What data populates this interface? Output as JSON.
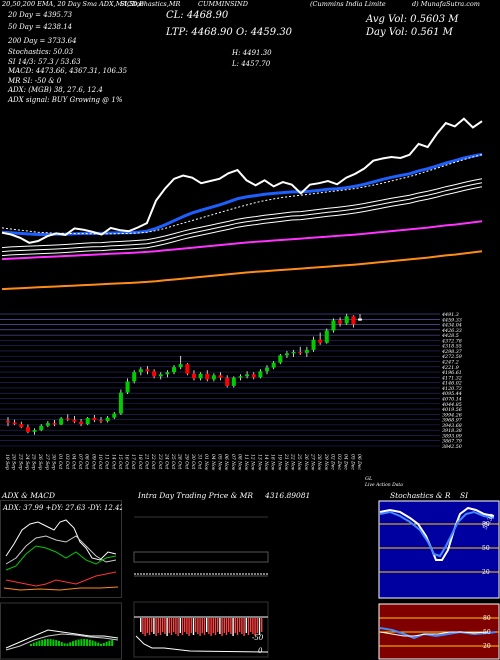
{
  "header": {
    "line1_left": "20,50,200 EMA, 20 Day Sma  ADX,MACD,B",
    "line1_mid1": "SI,Stochastics,MR",
    "line1_mid2": "CUMMINSIND",
    "line1_right1": "(Cummins India Limite",
    "line1_right2": "d) MunafaSutra.com",
    "sma20": "20  Day = 4395.73",
    "sma50": "50  Day = 4238.14",
    "sma200": "200  Day = 3733.64",
    "stochastics": "Stochastics: 50.03",
    "si": "SI 14/3:  57.3 / 53.63",
    "macd": "MACD: 4473.66, 4367.31, 106.35",
    "mr": "MR         SI: -50  & 0",
    "adx": "ADX:                 (MGB) 38, 27.6, 12.4",
    "adx_signal": "ADX  signal:                                    BUY Growing @ 1%",
    "cl": "CL: 4468.90",
    "ltp": "LTP: 4468.90 O: 4459.30",
    "hi": "H: 4491.30",
    "lo": "L: 4457.70",
    "avg_vol": "Avg Vol: 0.5603 M",
    "day_vol": "Day Vol: 0.561 M"
  },
  "bottom_labels": {
    "adx_macd": "ADX  & MACD",
    "intraday": "Intra Day Trading Price  & MR",
    "intraday_value": "4316.89081",
    "stoch_rsi": "Stochastics & R",
    "stoch_rsi_2": "SI",
    "adx_values": "ADX: 37.99  +DY: 27.63  -DY: 12.42",
    "mr_label": "-50",
    "mr_zero": "0",
    "rsi_levels": [
      "80",
      "50",
      "20"
    ],
    "rsi_value": "57.30",
    "gl_note1": "GL",
    "gl_note2": "Live Action Data"
  },
  "chart_data": {
    "type": "candlestick",
    "x_labels": [
      "19 Sep",
      "20 Sep",
      "23 Sep",
      "24 Sep",
      "25 Sep",
      "26 Sep",
      "27 Sep",
      "30 Sep",
      "01 Oct",
      "03 Oct",
      "04 Oct",
      "07 Oct",
      "08 Oct",
      "09 Oct",
      "10 Oct",
      "11 Oct",
      "14 Oct",
      "15 Oct",
      "16 Oct",
      "17 Oct",
      "18 Oct",
      "21 Oct",
      "22 Oct",
      "23 Oct",
      "24 Oct",
      "25 Oct",
      "28 Oct",
      "29 Oct",
      "30 Oct",
      "31 Oct",
      "01 Nov",
      "04 Nov",
      "05 Nov",
      "06 Nov",
      "07 Nov",
      "08 Nov",
      "11 Nov",
      "12 Nov",
      "13 Nov",
      "14 Nov",
      "18 Nov",
      "19 Nov",
      "21 Nov",
      "22 Nov",
      "25 Nov",
      "26 Nov",
      "27 Nov",
      "28 Nov",
      "29 Nov",
      "02 Dec",
      "03 Dec",
      "04 Dec",
      "05 Dec",
      "06 Dec"
    ],
    "price_ticks": [
      "4491.3",
      "4459.33",
      "4434.04",
      "4426.33",
      "4428.5",
      "4372.78",
      "4318.55",
      "4298.37",
      "4272.59",
      "4247.2",
      "4221.9",
      "4196.61",
      "4171.32",
      "4146.02",
      "4120.73",
      "4095.44",
      "4070.14",
      "4044.85",
      "4019.56",
      "3994.26",
      "3968.97",
      "3943.68",
      "3918.38",
      "3893.09",
      "3867.79",
      "3842.50"
    ],
    "candles": [
      [
        3965,
        3985,
        3940,
        3958
      ],
      [
        3958,
        3972,
        3945,
        3950
      ],
      [
        3950,
        3962,
        3930,
        3935
      ],
      [
        3935,
        3948,
        3905,
        3912
      ],
      [
        3912,
        3930,
        3898,
        3920
      ],
      [
        3920,
        3950,
        3915,
        3942
      ],
      [
        3942,
        3965,
        3935,
        3955
      ],
      [
        3955,
        3970,
        3940,
        3948
      ],
      [
        3948,
        3985,
        3945,
        3978
      ],
      [
        3978,
        3998,
        3965,
        3972
      ],
      [
        3972,
        3990,
        3955,
        3962
      ],
      [
        3962,
        3975,
        3940,
        3950
      ],
      [
        3950,
        3985,
        3945,
        3980
      ],
      [
        3980,
        3995,
        3960,
        3970
      ],
      [
        3970,
        3985,
        3955,
        3965
      ],
      [
        3965,
        3990,
        3958,
        3982
      ],
      [
        3982,
        4010,
        3975,
        4002
      ],
      [
        4002,
        4120,
        3995,
        4105
      ],
      [
        4105,
        4175,
        4098,
        4160
      ],
      [
        4160,
        4215,
        4150,
        4205
      ],
      [
        4205,
        4230,
        4190,
        4220
      ],
      [
        4220,
        4235,
        4195,
        4210
      ],
      [
        4210,
        4220,
        4175,
        4185
      ],
      [
        4185,
        4205,
        4170,
        4195
      ],
      [
        4195,
        4215,
        4180,
        4205
      ],
      [
        4205,
        4240,
        4195,
        4230
      ],
      [
        4230,
        4285,
        4220,
        4245
      ],
      [
        4245,
        4250,
        4190,
        4198
      ],
      [
        4198,
        4215,
        4165,
        4175
      ],
      [
        4175,
        4205,
        4165,
        4198
      ],
      [
        4198,
        4215,
        4160,
        4170
      ],
      [
        4170,
        4200,
        4160,
        4190
      ],
      [
        4190,
        4205,
        4165,
        4178
      ],
      [
        4178,
        4190,
        4130,
        4138
      ],
      [
        4138,
        4185,
        4130,
        4178
      ],
      [
        4178,
        4195,
        4165,
        4185
      ],
      [
        4185,
        4210,
        4175,
        4195
      ],
      [
        4195,
        4205,
        4170,
        4180
      ],
      [
        4180,
        4220,
        4175,
        4210
      ],
      [
        4210,
        4240,
        4195,
        4228
      ],
      [
        4228,
        4260,
        4220,
        4252
      ],
      [
        4252,
        4295,
        4245,
        4288
      ],
      [
        4288,
        4310,
        4275,
        4298
      ],
      [
        4298,
        4315,
        4280,
        4305
      ],
      [
        4305,
        4330,
        4290,
        4300
      ],
      [
        4300,
        4330,
        4280,
        4315
      ],
      [
        4315,
        4380,
        4305,
        4365
      ],
      [
        4365,
        4400,
        4340,
        4350
      ],
      [
        4350,
        4420,
        4345,
        4410
      ],
      [
        4410,
        4470,
        4400,
        4460
      ],
      [
        4460,
        4475,
        4430,
        4445
      ],
      [
        4445,
        4492,
        4438,
        4480
      ],
      [
        4480,
        4485,
        4425,
        4440
      ],
      [
        4459.3,
        4491.3,
        4457.7,
        4468.9
      ]
    ],
    "ema_20": [
      3960,
      3958,
      3955,
      3952,
      3950,
      3950,
      3951,
      3951,
      3953,
      3955,
      3956,
      3955,
      3957,
      3958,
      3958,
      3960,
      3965,
      3978,
      3994,
      4013,
      4032,
      4049,
      4061,
      4073,
      4085,
      4099,
      4114,
      4122,
      4128,
      4134,
      4138,
      4142,
      4145,
      4145,
      4148,
      4152,
      4157,
      4159,
      4164,
      4171,
      4180,
      4191,
      4202,
      4212,
      4220,
      4228,
      4241,
      4251,
      4263,
      4277,
      4288,
      4300,
      4309,
      4317
    ],
    "ema_50": [
      3890,
      3893,
      3895,
      3897,
      3898,
      3900,
      3902,
      3904,
      3907,
      3910,
      3912,
      3913,
      3916,
      3918,
      3920,
      3923,
      3926,
      3934,
      3943,
      3954,
      3965,
      3975,
      3984,
      3992,
      4001,
      4010,
      4020,
      4027,
      4032,
      4038,
      4043,
      4048,
      4053,
      4055,
      4060,
      4065,
      4070,
      4074,
      4079,
      4085,
      4092,
      4100,
      4108,
      4116,
      4123,
      4130,
      4140,
      4148,
      4158,
      4169,
      4178,
      4188,
      4197,
      4205
    ],
    "ema_200": [
      3700,
      3702,
      3704,
      3706,
      3708,
      3710,
      3712,
      3714,
      3716,
      3718,
      3720,
      3722,
      3724,
      3726,
      3728,
      3730,
      3733,
      3736,
      3740,
      3744,
      3748,
      3752,
      3756,
      3760,
      3764,
      3768,
      3772,
      3776,
      3779,
      3782,
      3785,
      3788,
      3791,
      3794,
      3797,
      3800,
      3803,
      3806,
      3809,
      3812,
      3816,
      3820,
      3824,
      3828,
      3832,
      3836,
      3840,
      3844,
      3849,
      3854,
      3858,
      3863,
      3868,
      3873
    ],
    "sma_20": [
      3980,
      3975,
      3970,
      3965,
      3960,
      3958,
      3955,
      3955,
      3954,
      3954,
      3953,
      3953,
      3953,
      3954,
      3955,
      3957,
      3960,
      3968,
      3978,
      3990,
      4002,
      4014,
      4026,
      4038,
      4050,
      4062,
      4074,
      4085,
      4096,
      4105,
      4113,
      4120,
      4125,
      4130,
      4135,
      4140,
      4145,
      4150,
      4155,
      4160,
      4168,
      4176,
      4185,
      4195,
      4205,
      4215,
      4227,
      4240,
      4253,
      4267,
      4280,
      4293,
      4305,
      4316
    ],
    "title": "CUMMINSIND"
  },
  "colors": {
    "background": "#000000",
    "up": "#00cc00",
    "down": "#ff0000",
    "ema20": "#1e5fff",
    "ema50": "#ffffff",
    "ema200": "#ff8c1a",
    "ema_magenta": "#ff33ff",
    "grid_blue": "#4a4ab0",
    "rsi_bg": "#0000a0",
    "mr_bg": "#800000"
  }
}
